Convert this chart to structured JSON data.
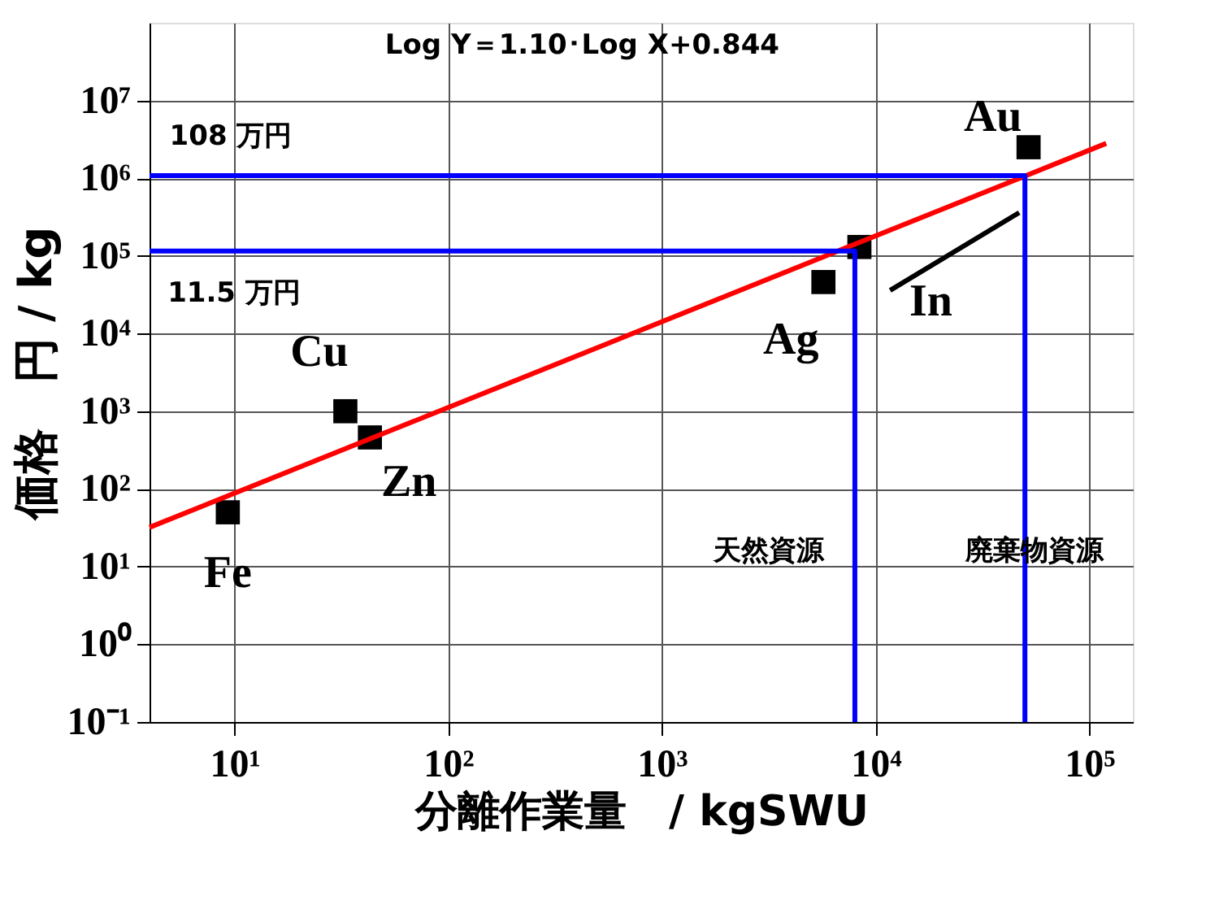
{
  "chart_data": {
    "type": "scatter",
    "xlabel": "分離作業量　/ kgSWU",
    "ylabel": "価格　円 / kg",
    "log": "xy",
    "grid": true,
    "xlim": [
      4,
      160000
    ],
    "ylim": [
      0.1,
      100000000
    ],
    "xticks": [
      {
        "value": 10,
        "label": "10¹"
      },
      {
        "value": 100,
        "label": "10²"
      },
      {
        "value": 1000,
        "label": "10³"
      },
      {
        "value": 10000,
        "label": "10⁴"
      },
      {
        "value": 100000,
        "label": "10⁵"
      }
    ],
    "yticks": [
      {
        "value": 0.1,
        "label": "10⁻¹"
      },
      {
        "value": 1,
        "label": "10⁰"
      },
      {
        "value": 10,
        "label": "10¹"
      },
      {
        "value": 100,
        "label": "10²"
      },
      {
        "value": 1000,
        "label": "10³"
      },
      {
        "value": 10000,
        "label": "10⁴"
      },
      {
        "value": 100000,
        "label": "10⁵"
      },
      {
        "value": 1000000,
        "label": "10⁶"
      },
      {
        "value": 10000000,
        "label": "10⁷"
      }
    ],
    "series": [
      {
        "color": "#000000",
        "marker": "square",
        "x": [
          9.3,
          33,
          43,
          5700,
          8400,
          52000
        ],
        "values": [
          50,
          1000,
          460,
          46000,
          130000,
          2500000
        ]
      },
      {
        "type": "line",
        "color": "#ff0000",
        "line_style": "solid",
        "x": [
          4,
          120000
        ],
        "values": [
          32,
          2800000
        ]
      },
      {
        "type": "line",
        "color": "#0000ff",
        "line_style": "solid",
        "x": [
          4,
          50000,
          50000
        ],
        "values": [
          1080000,
          1080000,
          0.1
        ]
      },
      {
        "type": "line",
        "color": "#0000ff",
        "line_style": "solid",
        "x": [
          4,
          8000,
          8000
        ],
        "values": [
          115000,
          115000,
          0.1
        ]
      },
      {
        "type": "line",
        "color": "#000000",
        "line_style": "solid",
        "x": [
          11700,
          47000
        ],
        "values": [
          36000,
          360000
        ]
      }
    ],
    "annotations": [
      "Log Y＝1.10･Log X+0.844",
      {
        "text": "108 万円",
        "x": 4,
        "y": 1080000
      },
      {
        "text": "11.5 万円",
        "x": 4,
        "y": 115000
      },
      "天然資源",
      "廃棄物資源",
      {
        "text": "Au",
        "x": 52000,
        "y": 2500000
      },
      {
        "text": "In",
        "x": 8400,
        "y": 130000
      },
      {
        "text": "Ag",
        "x": 5700,
        "y": 46000
      },
      {
        "text": "Cu",
        "x": 33,
        "y": 1000
      },
      {
        "text": "Zn",
        "x": 43,
        "y": 460
      },
      {
        "text": "Fe",
        "x": 9.3,
        "y": 50
      }
    ]
  }
}
